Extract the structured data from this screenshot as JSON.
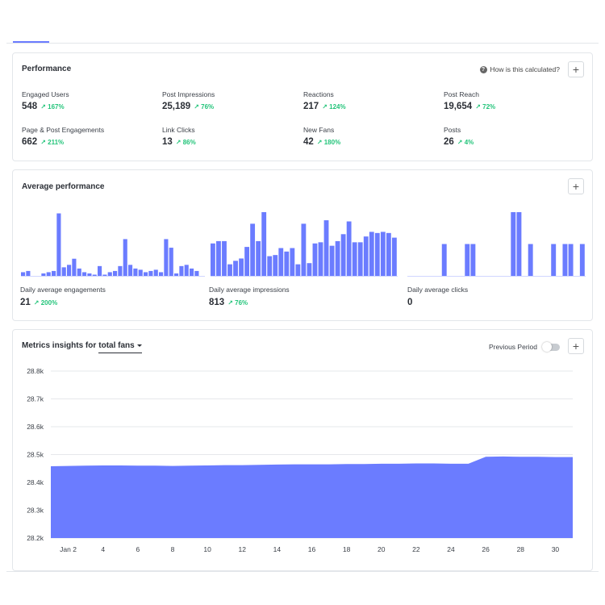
{
  "performance": {
    "title": "Performance",
    "how_calculated": "How is this calculated?",
    "metrics": [
      {
        "label": "Engaged Users",
        "value": "548",
        "change": "167%"
      },
      {
        "label": "Post Impressions",
        "value": "25,189",
        "change": "76%"
      },
      {
        "label": "Reactions",
        "value": "217",
        "change": "124%"
      },
      {
        "label": "Post Reach",
        "value": "19,654",
        "change": "72%"
      },
      {
        "label": "Page & Post Engagements",
        "value": "662",
        "change": "211%"
      },
      {
        "label": "Link Clicks",
        "value": "13",
        "change": "86%"
      },
      {
        "label": "New Fans",
        "value": "42",
        "change": "180%"
      },
      {
        "label": "Posts",
        "value": "26",
        "change": "4%"
      }
    ]
  },
  "average": {
    "title": "Average performance",
    "items": [
      {
        "label": "Daily average engagements",
        "value": "21",
        "change": "200%"
      },
      {
        "label": "Daily average impressions",
        "value": "813",
        "change": "76%"
      },
      {
        "label": "Daily average clicks",
        "value": "0",
        "change": ""
      }
    ]
  },
  "insights": {
    "title_prefix": "Metrics insights for",
    "metric_selected": "total fans",
    "previous_period_label": "Previous Period",
    "previous_period_on": false
  },
  "colors": {
    "accent": "#6b7cff",
    "positive": "#23c47a",
    "grid": "#e6e8eb"
  },
  "icons": {
    "plus": "plus-icon",
    "help": "question-circle-icon",
    "trend": "arrow-up-right-icon",
    "dropdown": "caret-down-icon"
  },
  "chart_data": [
    {
      "type": "bar",
      "name": "Daily engagements",
      "values": [
        3,
        4,
        0,
        0,
        2,
        3,
        4,
        51,
        7,
        9,
        14,
        6,
        3,
        2,
        1,
        8,
        1,
        3,
        4,
        8,
        30,
        9,
        6,
        5,
        3,
        4,
        5,
        3,
        30,
        23,
        2,
        8,
        9,
        6,
        4,
        0
      ],
      "ylim": [
        0,
        52
      ]
    },
    {
      "type": "bar",
      "name": "Daily impressions",
      "values": [
        28,
        30,
        30,
        10,
        13,
        15,
        25,
        45,
        30,
        55,
        17,
        18,
        24,
        21,
        24,
        10,
        45,
        11,
        28,
        29,
        48,
        26,
        30,
        36,
        47,
        29,
        29,
        34,
        38,
        37,
        38,
        37,
        33
      ],
      "ylim": [
        0,
        55
      ]
    },
    {
      "type": "bar",
      "name": "Daily clicks",
      "values": [
        0,
        0,
        0,
        0,
        0,
        0,
        1,
        0,
        0,
        0,
        1,
        1,
        0,
        0,
        0,
        0,
        0,
        0,
        2,
        2,
        0,
        1,
        0,
        0,
        0,
        1,
        0,
        1,
        1,
        0,
        1
      ],
      "ylim": [
        0,
        2
      ]
    },
    {
      "type": "area",
      "x": [
        "Jan 1",
        "Jan 2",
        "Jan 3",
        "Jan 4",
        "Jan 5",
        "Jan 6",
        "Jan 7",
        "Jan 8",
        "Jan 9",
        "Jan 10",
        "Jan 11",
        "Jan 12",
        "Jan 13",
        "Jan 14",
        "Jan 15",
        "Jan 16",
        "Jan 17",
        "Jan 18",
        "Jan 19",
        "Jan 20",
        "Jan 21",
        "Jan 22",
        "Jan 23",
        "Jan 24",
        "Jan 25",
        "Jan 26",
        "Jan 27",
        "Jan 28",
        "Jan 29",
        "Jan 30",
        "Jan 31"
      ],
      "values": [
        28458,
        28459,
        28460,
        28461,
        28461,
        28460,
        28460,
        28459,
        28460,
        28461,
        28462,
        28462,
        28463,
        28464,
        28465,
        28465,
        28465,
        28466,
        28466,
        28467,
        28467,
        28468,
        28468,
        28467,
        28467,
        28492,
        28493,
        28492,
        28492,
        28491,
        28491
      ],
      "xticks": [
        "Jan 2",
        "4",
        "6",
        "8",
        "10",
        "12",
        "14",
        "16",
        "18",
        "20",
        "22",
        "24",
        "26",
        "28",
        "30"
      ],
      "xtick_days": [
        2,
        4,
        6,
        8,
        10,
        12,
        14,
        16,
        18,
        20,
        22,
        24,
        26,
        28,
        30
      ],
      "yticks": [
        "28.2k",
        "28.3k",
        "28.4k",
        "28.5k",
        "28.6k",
        "28.7k",
        "28.8k"
      ],
      "ytick_values": [
        28200,
        28300,
        28400,
        28500,
        28600,
        28700,
        28800
      ],
      "ylim": [
        28200,
        28800
      ],
      "grid": true,
      "legend": "none"
    }
  ]
}
